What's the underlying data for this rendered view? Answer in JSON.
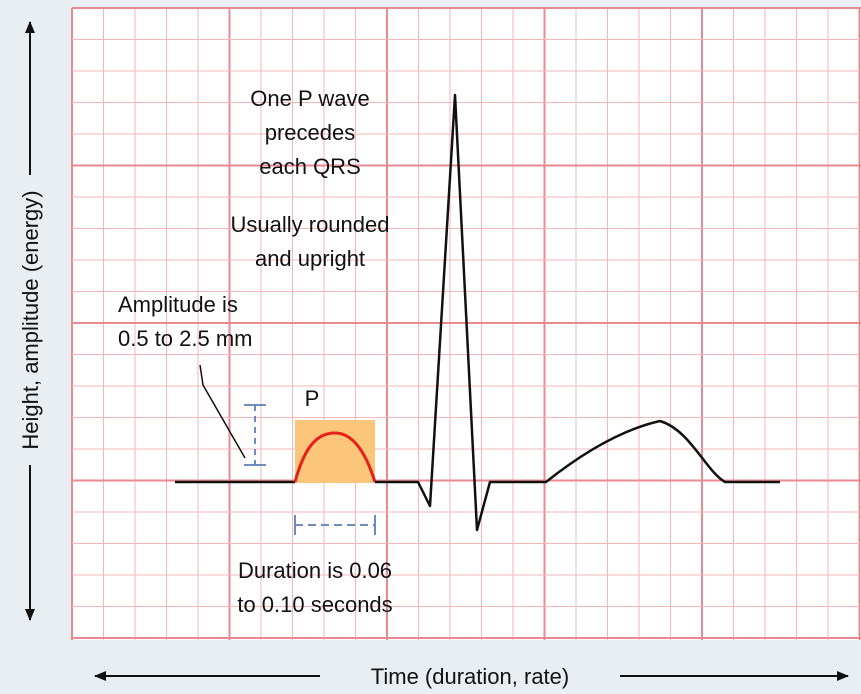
{
  "axes": {
    "y_label": "Height, amplitude (energy)",
    "x_label": "Time (duration, rate)"
  },
  "annotations": {
    "p_wave_rule": [
      "One P wave",
      "precedes",
      "each QRS"
    ],
    "shape": [
      "Usually rounded",
      "and upright"
    ],
    "amplitude": [
      "Amplitude is",
      "0.5 to 2.5 mm"
    ],
    "wave_label": "P",
    "duration": [
      "Duration is 0.06",
      "to 0.10 seconds"
    ]
  }
}
